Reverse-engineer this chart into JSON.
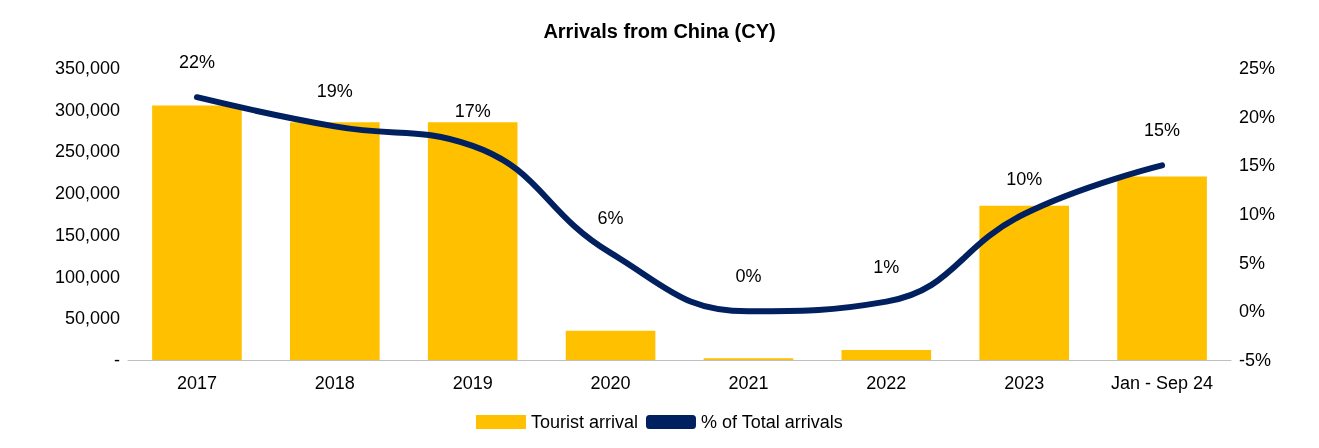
{
  "chart_data": {
    "type": "bar",
    "title": "Arrivals from China (CY)",
    "categories": [
      "2017",
      "2018",
      "2019",
      "2020",
      "2021",
      "2022",
      "2023",
      "Jan - Sep 24"
    ],
    "series": [
      {
        "name": "Tourist arrival",
        "color": "#ffc000",
        "values": [
          305000,
          285000,
          285000,
          35000,
          2000,
          12000,
          185000,
          220000
        ]
      },
      {
        "name": "% of Total arrivals",
        "type": "line",
        "axis": "y2",
        "color": "#002060",
        "values": [
          22,
          19,
          17,
          6,
          0,
          1,
          10,
          15
        ],
        "value_labels": [
          "22%",
          "19%",
          "17%",
          "6%",
          "0%",
          "1%",
          "10%",
          "15%"
        ]
      }
    ],
    "ylim": [
      0,
      350000
    ],
    "yticks": [
      {
        "value": 0,
        "label": "-"
      },
      {
        "value": 50000,
        "label": "50,000"
      },
      {
        "value": 100000,
        "label": "100,000"
      },
      {
        "value": 150000,
        "label": "150,000"
      },
      {
        "value": 200000,
        "label": "200,000"
      },
      {
        "value": 250000,
        "label": "250,000"
      },
      {
        "value": 300000,
        "label": "300,000"
      },
      {
        "value": 350000,
        "label": "350,000"
      }
    ],
    "y2lim": [
      -5,
      25
    ],
    "y2ticks": [
      {
        "value": -5,
        "label": "-5%"
      },
      {
        "value": 0,
        "label": "0%"
      },
      {
        "value": 5,
        "label": "5%"
      },
      {
        "value": 10,
        "label": "10%"
      },
      {
        "value": 15,
        "label": "15%"
      },
      {
        "value": 20,
        "label": "20%"
      },
      {
        "value": 25,
        "label": "25%"
      }
    ],
    "grid": false,
    "legend": "bottom",
    "marker": "none",
    "line_style": "solid"
  }
}
